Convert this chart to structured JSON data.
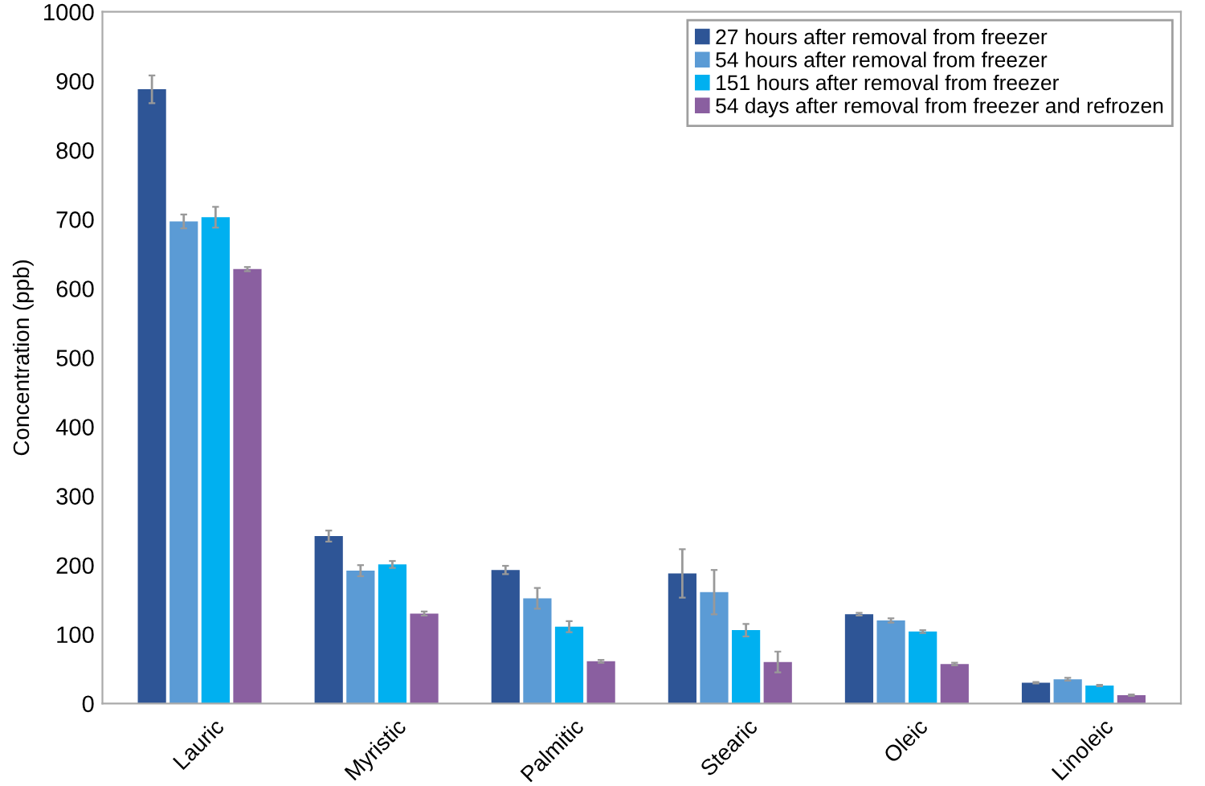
{
  "chart_data": {
    "type": "bar",
    "ylabel": "Concentration (ppb)",
    "categories": [
      "Lauric",
      "Myristic",
      "Palmitic",
      "Stearic",
      "Oleic",
      "Linoleic"
    ],
    "series": [
      {
        "name": "27 hours after removal from freezer",
        "color": "#2e5596",
        "values": [
          888,
          242,
          193,
          188,
          129,
          30
        ],
        "errors": [
          20,
          8,
          6,
          35,
          2,
          1
        ]
      },
      {
        "name": "54 hours after removal from freezer",
        "color": "#5b9bd5",
        "values": [
          697,
          192,
          152,
          161,
          120,
          35
        ],
        "errors": [
          10,
          8,
          15,
          32,
          3,
          2
        ]
      },
      {
        "name": "151 hours after removal from freezer",
        "color": "#00b0f0",
        "values": [
          703,
          201,
          111,
          106,
          104,
          26
        ],
        "errors": [
          15,
          5,
          8,
          9,
          2,
          1
        ]
      },
      {
        "name": "54 days after removal from freezer and refrozen",
        "color": "#8a5fa0",
        "values": [
          628,
          130,
          61,
          60,
          57,
          12
        ],
        "errors": [
          3,
          3,
          2,
          15,
          2,
          1
        ]
      }
    ],
    "ylim": [
      0,
      1000
    ],
    "yticks": [
      0,
      100,
      200,
      300,
      400,
      500,
      600,
      700,
      800,
      900,
      1000
    ],
    "grid": false,
    "legend": "top right"
  }
}
